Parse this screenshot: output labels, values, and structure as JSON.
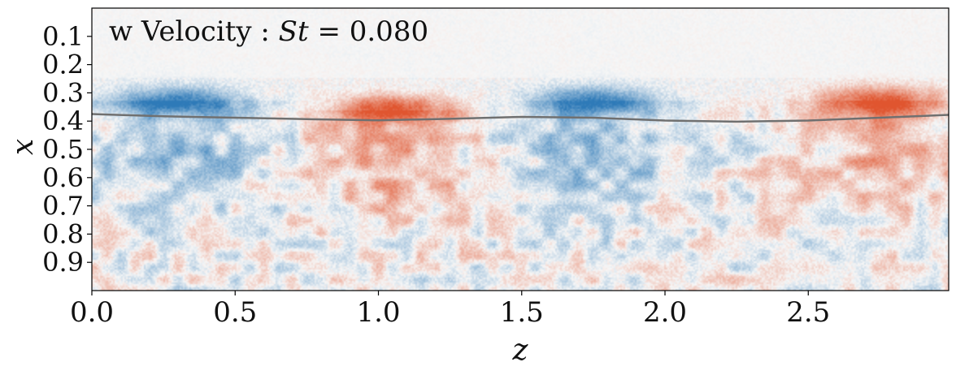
{
  "chart_data": {
    "type": "heatmap",
    "title": "w Velocity : St = 0.080",
    "title_parts": {
      "prefix": "w Velocity : ",
      "symbol": "St",
      "suffix": " = 0.080"
    },
    "xlabel": "z",
    "ylabel": "x",
    "xlim": [
      0.0,
      2.99
    ],
    "ylim": [
      0.0,
      1.0
    ],
    "y_inverted": true,
    "xticks": [
      0.0,
      0.5,
      1.0,
      1.5,
      2.0,
      2.5
    ],
    "xtick_labels": [
      "0.0",
      "0.5",
      "1.0",
      "1.5",
      "2.0",
      "2.5"
    ],
    "yticks": [
      0.1,
      0.2,
      0.3,
      0.4,
      0.5,
      0.6,
      0.7,
      0.8,
      0.9
    ],
    "ytick_labels": [
      "0.1",
      "0.2",
      "0.3",
      "0.4",
      "0.5",
      "0.6",
      "0.7",
      "0.8",
      "0.9"
    ],
    "colormap": {
      "negative": "#2e7ab8",
      "zero": "#f7f7f7",
      "positive": "#e0552f"
    },
    "grid": false,
    "structures": [
      {
        "sign": "negative",
        "z": 0.3,
        "x": 0.33,
        "strength": -0.95
      },
      {
        "sign": "positive",
        "z": 1.05,
        "x": 0.36,
        "strength": 0.95
      },
      {
        "sign": "negative",
        "z": 1.75,
        "x": 0.33,
        "strength": -0.9
      },
      {
        "sign": "positive",
        "z": 2.75,
        "x": 0.33,
        "strength": 0.95
      }
    ],
    "interface_line": {
      "color": "#707070",
      "z": [
        0.0,
        0.25,
        0.5,
        0.75,
        1.0,
        1.25,
        1.5,
        1.75,
        2.0,
        2.25,
        2.5,
        2.75,
        2.99
      ],
      "x": [
        0.375,
        0.383,
        0.388,
        0.393,
        0.397,
        0.392,
        0.385,
        0.388,
        0.398,
        0.402,
        0.398,
        0.388,
        0.378
      ]
    }
  }
}
